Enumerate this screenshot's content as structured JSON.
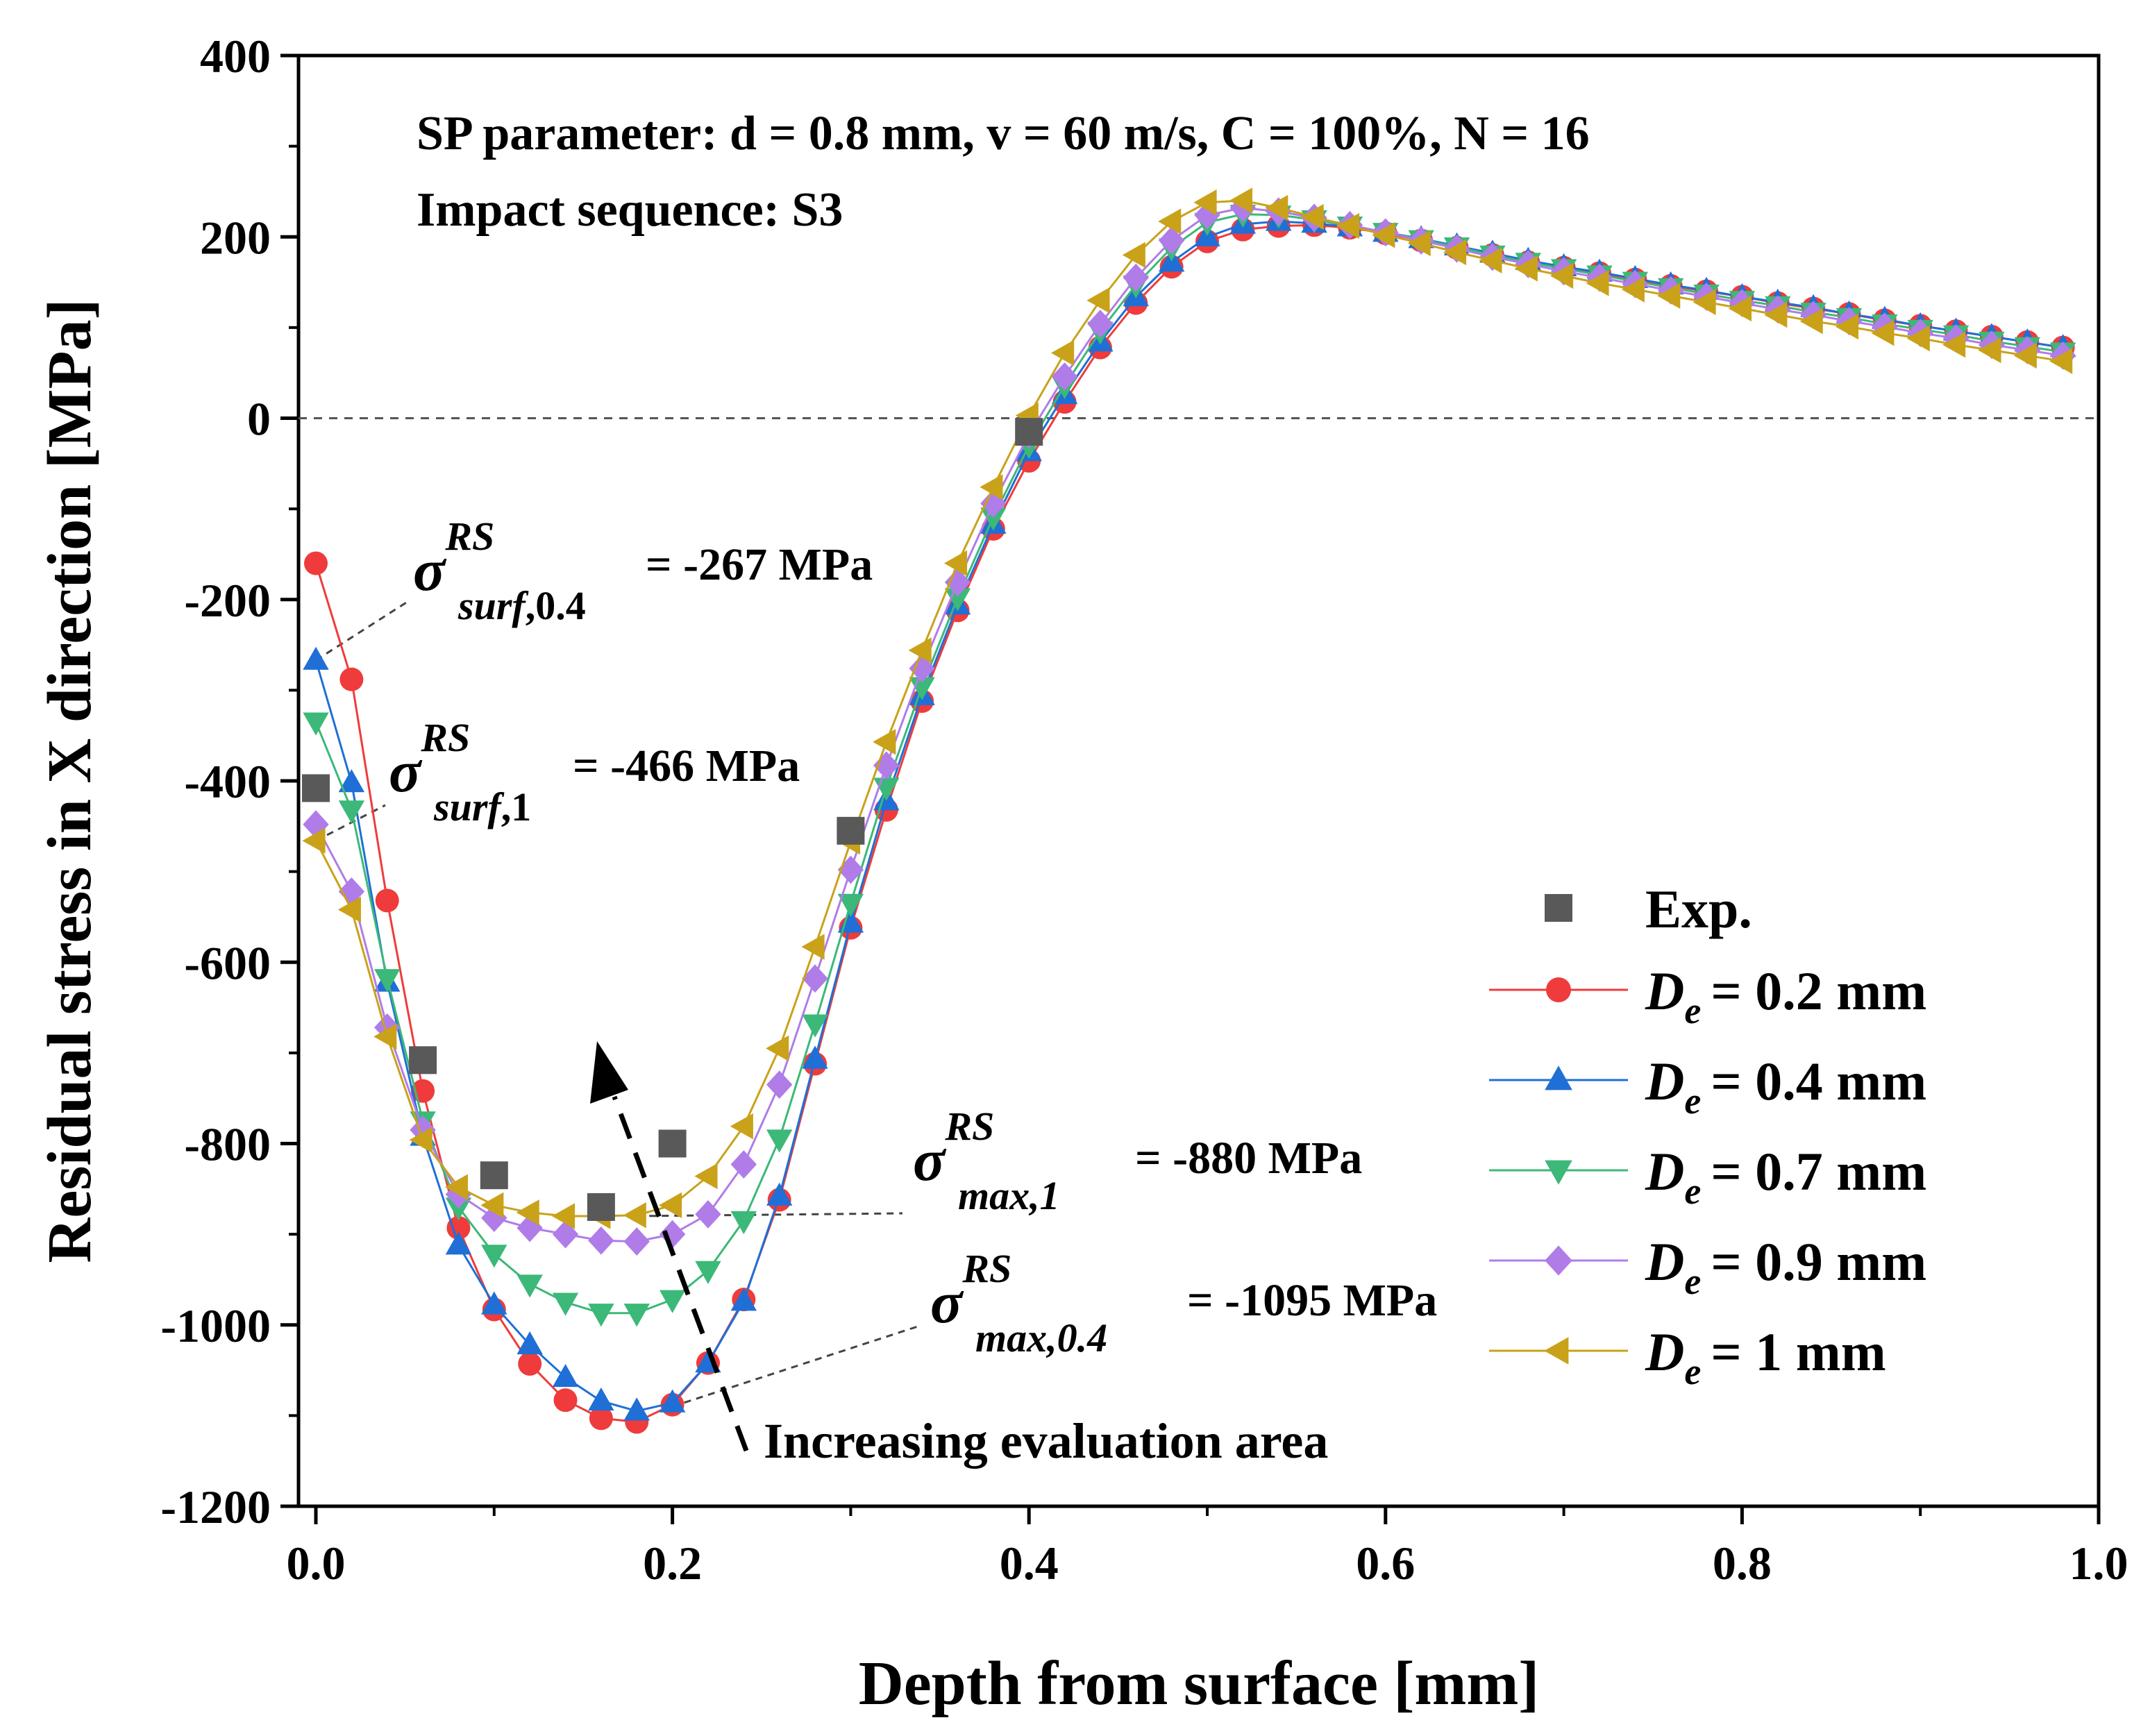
{
  "chart_data": {
    "type": "line",
    "xlabel": "Depth from surface [mm]",
    "ylabel": "Residual stress in X direction [MPa]",
    "xlim": [
      0.0,
      1.0
    ],
    "ylim": [
      -1200,
      400
    ],
    "x_ticks": [
      "0.0",
      "0.2",
      "0.4",
      "0.6",
      "0.8",
      "1.0"
    ],
    "y_ticks": [
      "400",
      "200",
      "0",
      "-200",
      "-400",
      "-600",
      "-800",
      "-1000",
      "-1200"
    ],
    "x_tick_values": [
      0.0,
      0.2,
      0.4,
      0.6,
      0.8,
      1.0
    ],
    "y_tick_values": [
      400,
      200,
      0,
      -200,
      -400,
      -600,
      -800,
      -1000,
      -1200
    ],
    "zero_line": 0,
    "header": {
      "line1": "SP parameter: d = 0.8 mm, v = 60 m/s, C = 100%, N = 16",
      "line2": "Impact sequence: S3"
    },
    "annotations": {
      "surf04": {
        "sigma": "σ",
        "sup": "RS",
        "sub": "surf",
        "sub2": ",0.4",
        "value": "= -267 MPa",
        "x": 0.0,
        "y": -267
      },
      "surf1": {
        "sigma": "σ",
        "sup": "RS",
        "sub": "surf",
        "sub2": ",1",
        "value": "= -466 MPa",
        "x": 0.0,
        "y": -466
      },
      "max1": {
        "sigma": "σ",
        "sup": "RS",
        "sub": "max,1",
        "value": "= -880 MPa",
        "x": 0.18,
        "y": -880
      },
      "max04": {
        "sigma": "σ",
        "sup": "RS",
        "sub": "max,0.4",
        "value": "= -1095 MPa",
        "x": 0.2,
        "y": -1090
      },
      "arrow_label": "Increasing evaluation area"
    },
    "legend": {
      "exp_label": "Exp.",
      "de_prefix": "D",
      "de_sub": "e",
      "entries": [
        "= 0.2 mm",
        "= 0.4 mm",
        "= 0.7 mm",
        "= 0.9 mm",
        "= 1 mm"
      ]
    },
    "experimental": {
      "name": "Exp.",
      "color": "#595959",
      "x": [
        0.0,
        0.06,
        0.1,
        0.16,
        0.2,
        0.3,
        0.4
      ],
      "y": [
        -408,
        -708,
        -835,
        -870,
        -800,
        -455,
        -15
      ]
    },
    "x": [
      0.0,
      0.02,
      0.04,
      0.06,
      0.08,
      0.1,
      0.12,
      0.14,
      0.16,
      0.18,
      0.2,
      0.22,
      0.24,
      0.26,
      0.28,
      0.3,
      0.32,
      0.34,
      0.36,
      0.38,
      0.4,
      0.42,
      0.44,
      0.46,
      0.48,
      0.5,
      0.52,
      0.54,
      0.56,
      0.58,
      0.6,
      0.62,
      0.64,
      0.66,
      0.68,
      0.7,
      0.72,
      0.74,
      0.76,
      0.78,
      0.8,
      0.82,
      0.84,
      0.86,
      0.88,
      0.9,
      0.92,
      0.94,
      0.96,
      0.98
    ],
    "series": [
      {
        "name": "De = 0.2 mm",
        "marker": "circle",
        "color": "#ef3b3b",
        "values": [
          -160,
          -288,
          -532,
          -742,
          -893,
          -983,
          -1043,
          -1083,
          -1103,
          -1107,
          -1088,
          -1042,
          -972,
          -862,
          -712,
          -562,
          -432,
          -312,
          -212,
          -122,
          -47,
          18,
          78,
          127,
          167,
          195,
          208,
          212,
          213,
          210,
          204,
          196,
          188,
          180,
          172,
          166,
          160,
          153,
          146,
          140,
          134,
          127,
          121,
          115,
          108,
          102,
          96,
          90,
          84,
          78
        ]
      },
      {
        "name": "De = 0.4 mm",
        "marker": "triangle-up",
        "color": "#1f6fd6",
        "values": [
          -267,
          -402,
          -622,
          -792,
          -912,
          -978,
          -1022,
          -1058,
          -1084,
          -1095,
          -1086,
          -1042,
          -974,
          -858,
          -707,
          -557,
          -422,
          -306,
          -206,
          -117,
          -37,
          26,
          84,
          134,
          172,
          200,
          214,
          217,
          215,
          211,
          205,
          198,
          190,
          182,
          174,
          167,
          161,
          154,
          147,
          141,
          134,
          128,
          122,
          115,
          109,
          102,
          96,
          90,
          84,
          78
        ]
      },
      {
        "name": "De = 0.7 mm",
        "marker": "triangle-down",
        "color": "#3cb878",
        "values": [
          -335,
          -432,
          -618,
          -775,
          -870,
          -922,
          -955,
          -975,
          -987,
          -987,
          -972,
          -940,
          -885,
          -795,
          -668,
          -535,
          -407,
          -296,
          -198,
          -109,
          -30,
          36,
          96,
          147,
          188,
          216,
          225,
          224,
          219,
          212,
          205,
          197,
          189,
          180,
          172,
          165,
          158,
          151,
          144,
          137,
          130,
          124,
          117,
          111,
          104,
          98,
          92,
          85,
          79,
          73
        ]
      },
      {
        "name": "De = 0.9 mm",
        "marker": "diamond",
        "color": "#b07ce8",
        "values": [
          -448,
          -522,
          -672,
          -785,
          -856,
          -882,
          -893,
          -900,
          -907,
          -908,
          -900,
          -878,
          -823,
          -735,
          -618,
          -498,
          -383,
          -276,
          -181,
          -94,
          -18,
          46,
          104,
          155,
          196,
          224,
          232,
          228,
          221,
          213,
          205,
          196,
          187,
          178,
          170,
          162,
          155,
          148,
          141,
          134,
          127,
          120,
          114,
          107,
          101,
          94,
          88,
          81,
          75,
          69
        ]
      },
      {
        "name": "De = 1 mm",
        "marker": "triangle-left",
        "color": "#c9a21a",
        "values": [
          -466,
          -542,
          -682,
          -796,
          -848,
          -868,
          -876,
          -880,
          -880,
          -879,
          -868,
          -836,
          -781,
          -695,
          -583,
          -467,
          -357,
          -256,
          -160,
          -76,
          3,
          72,
          130,
          180,
          217,
          238,
          240,
          232,
          222,
          212,
          202,
          193,
          183,
          174,
          165,
          157,
          149,
          142,
          135,
          128,
          121,
          114,
          107,
          101,
          94,
          88,
          81,
          75,
          69,
          63
        ]
      }
    ]
  }
}
